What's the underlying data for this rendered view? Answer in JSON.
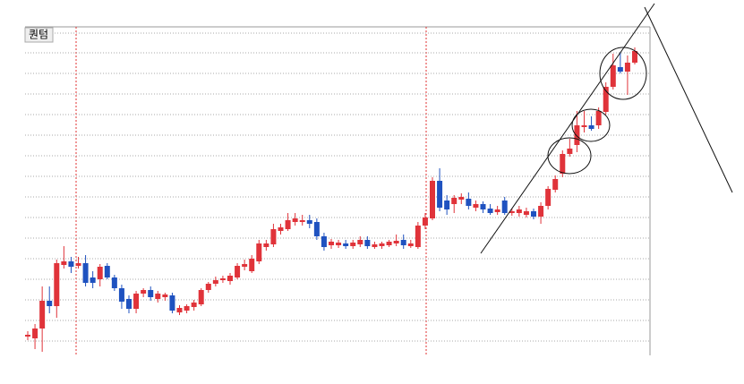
{
  "chart_data": {
    "type": "candlestick",
    "title": "퀀텀",
    "up_color": "#e0333a",
    "down_color": "#1f52c0",
    "ylim": [
      7,
      374
    ],
    "yticks": [
      23,
      46,
      69,
      92,
      115,
      138,
      161,
      184,
      207,
      230,
      253,
      276,
      299,
      322,
      345,
      367
    ],
    "grid": true,
    "tick_labels": false,
    "open": [
      28,
      26,
      37,
      68,
      62,
      108,
      112,
      107,
      110,
      94,
      92,
      107,
      94,
      82,
      70,
      59,
      76,
      80,
      70,
      72,
      74,
      55,
      57,
      61,
      64,
      80,
      87,
      91,
      90,
      94,
      106,
      101,
      112,
      128,
      131,
      146,
      148,
      156,
      156,
      158,
      156,
      140,
      130,
      130,
      132,
      129,
      131,
      136,
      128,
      129,
      130,
      132,
      136,
      129,
      128,
      152,
      160,
      202,
      180,
      176,
      181,
      182,
      172,
      176,
      171,
      167,
      180,
      166,
      166,
      164,
      168,
      162,
      174,
      192,
      210,
      232,
      242,
      262,
      264,
      264,
      279,
      307,
      329,
      324,
      334
    ],
    "high": [
      34,
      42,
      84,
      84,
      114,
      129,
      117,
      117,
      119,
      101,
      109,
      110,
      97,
      86,
      74,
      79,
      82,
      84,
      79,
      77,
      77,
      63,
      64,
      69,
      82,
      89,
      95,
      96,
      99,
      110,
      114,
      119,
      136,
      136,
      154,
      154,
      166,
      166,
      164,
      164,
      160,
      144,
      137,
      136,
      136,
      136,
      140,
      140,
      134,
      134,
      136,
      142,
      142,
      136,
      156,
      166,
      206,
      216,
      186,
      186,
      188,
      189,
      180,
      179,
      176,
      174,
      184,
      171,
      174,
      172,
      171,
      178,
      196,
      208,
      236,
      249,
      280,
      280,
      274,
      284,
      312,
      344,
      346,
      342,
      351
    ],
    "low": [
      24,
      14,
      11,
      54,
      49,
      104,
      99,
      104,
      84,
      82,
      84,
      92,
      79,
      59,
      54,
      54,
      72,
      68,
      66,
      68,
      54,
      52,
      54,
      57,
      62,
      77,
      84,
      88,
      86,
      92,
      102,
      99,
      109,
      124,
      128,
      142,
      146,
      152,
      152,
      149,
      136,
      124,
      126,
      127,
      126,
      126,
      128,
      126,
      126,
      126,
      128,
      129,
      126,
      127,
      126,
      148,
      158,
      168,
      164,
      166,
      176,
      170,
      168,
      166,
      164,
      164,
      164,
      163,
      162,
      161,
      159,
      154,
      170,
      189,
      206,
      229,
      234,
      256,
      258,
      260,
      276,
      304,
      322,
      298,
      332
    ],
    "close": [
      30,
      37,
      68,
      62,
      110,
      112,
      106,
      110,
      88,
      88,
      106,
      94,
      82,
      67,
      59,
      76,
      80,
      72,
      76,
      75,
      57,
      60,
      62,
      66,
      80,
      87,
      91,
      93,
      96,
      107,
      109,
      115,
      132,
      132,
      148,
      150,
      158,
      160,
      158,
      154,
      140,
      128,
      134,
      133,
      129,
      133,
      136,
      129,
      131,
      132,
      134,
      135,
      130,
      132,
      152,
      161,
      202,
      172,
      170,
      183,
      184,
      174,
      176,
      170,
      166,
      170,
      166,
      168,
      170,
      168,
      162,
      174,
      193,
      204,
      232,
      238,
      264,
      264,
      260,
      280,
      307,
      331,
      324,
      334,
      347
    ]
  }
}
